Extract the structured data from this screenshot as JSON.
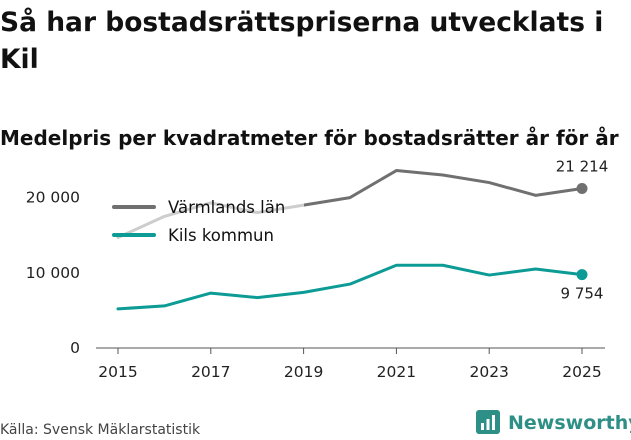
{
  "title": "Så har bostadsrättspriserna utvecklats i Kil",
  "subtitle": "Medelpris per kvadratmeter för bostadsrätter år för år",
  "source": "Källa: Svensk Mäklarstatistik",
  "brand": "Newsworthy",
  "colors": {
    "varmland": "#707070",
    "kil": "#0d9b95",
    "brand": "#2d8f85"
  },
  "chart_data": {
    "type": "line",
    "x": [
      2015,
      2016,
      2017,
      2018,
      2019,
      2020,
      2021,
      2022,
      2023,
      2024,
      2025
    ],
    "series": [
      {
        "name": "Värmlands län",
        "values": [
          14700,
          17500,
          19300,
          18000,
          19000,
          20000,
          23600,
          23000,
          22000,
          20300,
          21214
        ]
      },
      {
        "name": "Kils kommun",
        "values": [
          5200,
          5600,
          7300,
          6700,
          7400,
          8500,
          11000,
          11000,
          9700,
          10500,
          9754
        ]
      }
    ],
    "end_labels": [
      "21 214",
      "9 754"
    ],
    "xticks": [
      "2015",
      "2017",
      "2019",
      "2021",
      "2023",
      "2025"
    ],
    "yticks": [
      "0",
      "10 000",
      "20 000"
    ],
    "ylim": [
      0,
      25000
    ],
    "xlabel": "",
    "ylabel": "",
    "grid": false,
    "legend": "top-left"
  }
}
